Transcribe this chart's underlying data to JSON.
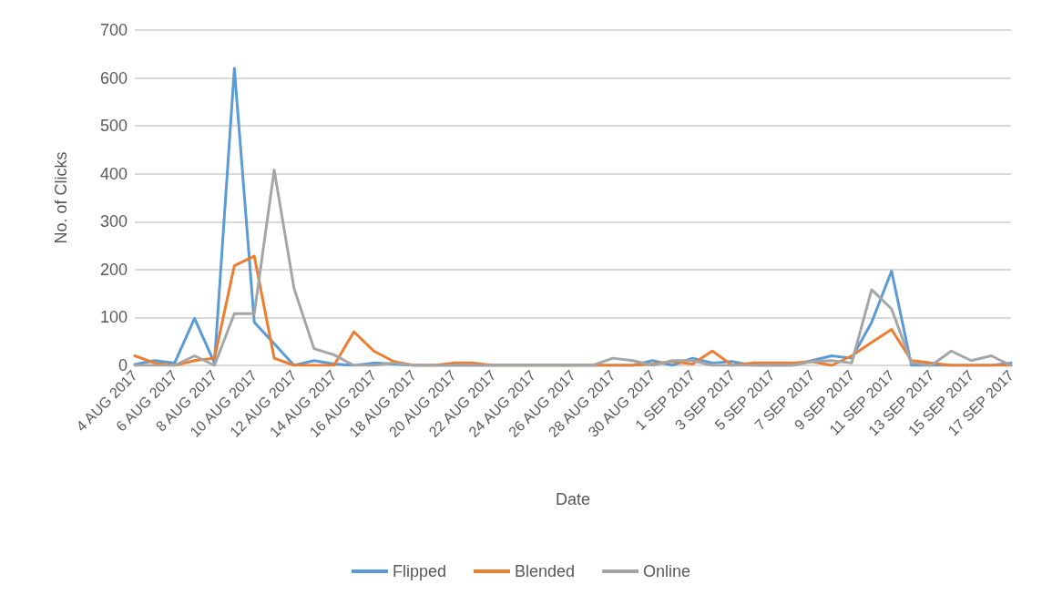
{
  "chart_data": {
    "type": "line",
    "xlabel": "Date",
    "ylabel": "No. of Clicks",
    "categories": [
      "4 AUG 2017",
      null,
      "6 AUG 2017",
      null,
      "8 AUG 2017",
      null,
      "10 AUG 2017",
      null,
      "12 AUG 2017",
      null,
      "14 AUG 2017",
      null,
      "16 AUG 2017",
      null,
      "18 AUG 2017",
      null,
      "20 AUG 2017",
      null,
      "22 AUG 2017",
      null,
      "24 AUG 2017",
      null,
      "26 AUG 2017",
      null,
      "28 AUG 2017",
      null,
      "30 AUG 2017",
      null,
      "1 SEP 2017",
      null,
      "3 SEP 2017",
      null,
      "5 SEP 2017",
      null,
      "7 SEP 2017",
      null,
      "9 SEP 2017",
      null,
      "11 SEP 2017",
      null,
      "13 SEP 2017",
      null,
      "15 SEP 2017",
      null,
      "17 SEP 2017"
    ],
    "series": [
      {
        "name": "Flipped",
        "color": "#5b9bd5",
        "values": [
          2,
          10,
          5,
          98,
          5,
          620,
          90,
          45,
          0,
          10,
          3,
          0,
          5,
          3,
          0,
          0,
          0,
          0,
          0,
          0,
          0,
          0,
          0,
          0,
          0,
          0,
          10,
          0,
          15,
          5,
          8,
          0,
          0,
          0,
          10,
          20,
          15,
          90,
          197,
          0,
          0,
          0,
          0,
          0,
          5
        ]
      },
      {
        "name": "Blended",
        "color": "#ed7d31",
        "values": [
          20,
          5,
          0,
          10,
          15,
          208,
          228,
          15,
          0,
          0,
          0,
          70,
          30,
          8,
          0,
          0,
          5,
          5,
          0,
          0,
          0,
          0,
          0,
          0,
          0,
          0,
          3,
          8,
          3,
          30,
          0,
          5,
          5,
          5,
          8,
          0,
          20,
          48,
          75,
          10,
          5,
          0,
          0,
          0,
          0
        ]
      },
      {
        "name": "Online",
        "color": "#a5a5a5",
        "values": [
          0,
          0,
          0,
          20,
          0,
          108,
          108,
          408,
          160,
          35,
          22,
          0,
          0,
          5,
          0,
          0,
          0,
          0,
          0,
          0,
          0,
          0,
          0,
          0,
          15,
          10,
          0,
          10,
          10,
          0,
          0,
          0,
          0,
          0,
          8,
          10,
          5,
          158,
          118,
          5,
          0,
          30,
          10,
          20,
          0
        ]
      }
    ],
    "ylim": [
      0,
      700
    ],
    "yticks": [
      0,
      100,
      200,
      300,
      400,
      500,
      600,
      700
    ],
    "grid": "y",
    "legend": "bottom",
    "marker": "none",
    "line_style": "solid"
  }
}
